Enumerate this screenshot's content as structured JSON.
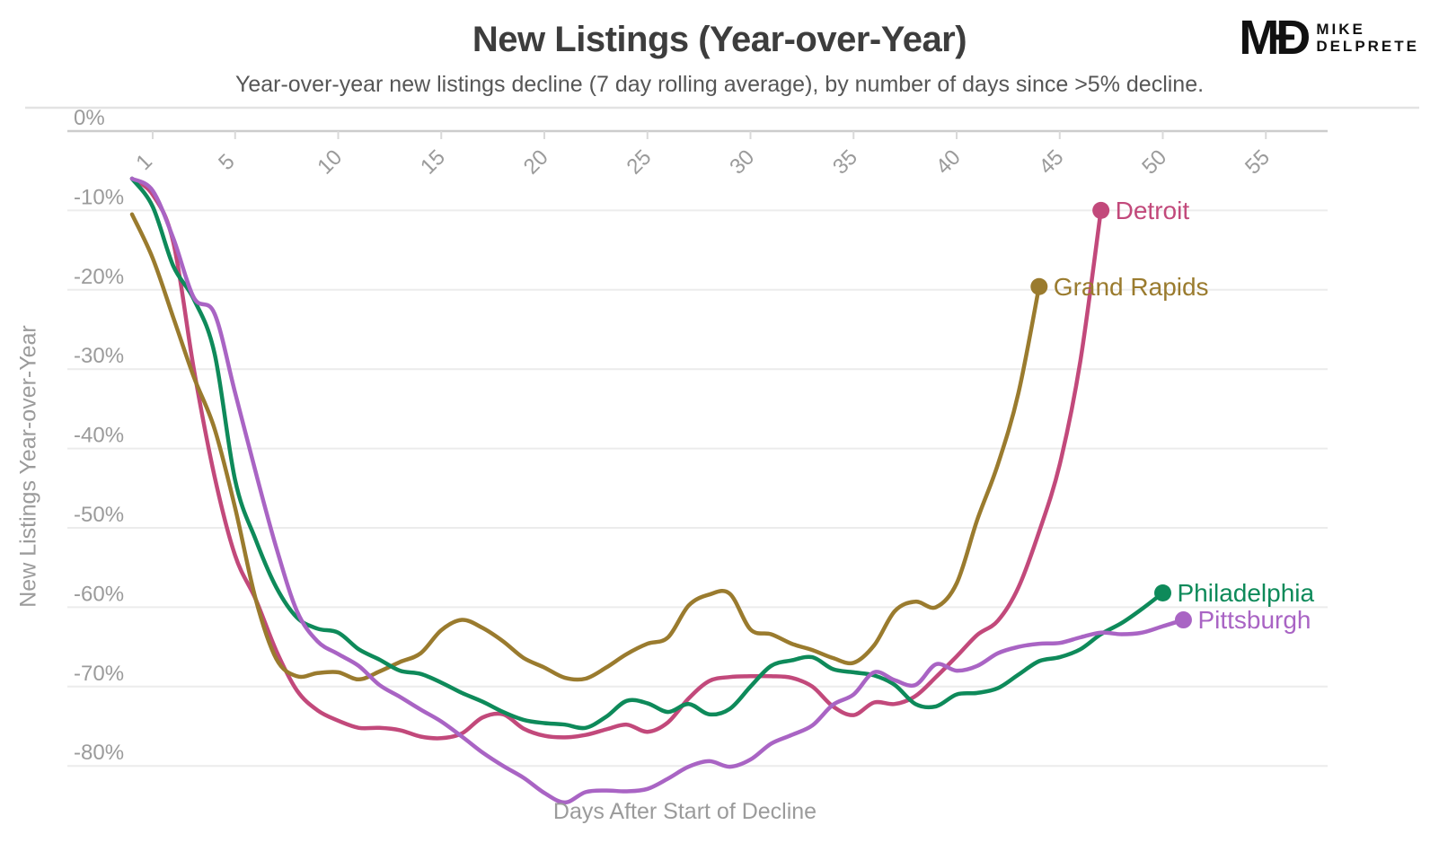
{
  "header": {
    "title": "New Listings (Year-over-Year)",
    "subtitle": "Year-over-year new listings decline (7 day rolling average), by number of days since >5% decline.",
    "logo_mark": "MÐ",
    "logo_line1": "MIKE",
    "logo_line2": "DELPRETE"
  },
  "chart_data": {
    "type": "line",
    "title": "New Listings (Year-over-Year)",
    "xlabel": "Days After Start of Decline",
    "ylabel": "New Listings Year-over-Year",
    "x_start_day": 0,
    "x_ticks": [
      1,
      5,
      10,
      15,
      20,
      25,
      30,
      35,
      40,
      45,
      50,
      55
    ],
    "y_ticks": [
      0,
      -10,
      -20,
      -30,
      -40,
      -50,
      -60,
      -70,
      -80
    ],
    "y_tick_labels": [
      "0%",
      "-10%",
      "-20%",
      "-30%",
      "-40%",
      "-50%",
      "-60%",
      "-70%",
      "-80%"
    ],
    "xlim": [
      0,
      58
    ],
    "ylim": [
      -87,
      0
    ],
    "grid": true,
    "legend_position": "end-of-line-labels",
    "colors": {
      "detroit": "#C2497B",
      "grand_rapids": "#9A7B2E",
      "philadelphia": "#0E8A5A",
      "pittsburgh": "#A964C4",
      "grid": "#ececec",
      "axis": "#cccccc",
      "tick_text": "#9b9b9b",
      "title_text": "#3d3d3d"
    },
    "series": [
      {
        "name": "Detroit",
        "color": "#C2497B",
        "end_label": "Detroit",
        "values": [
          -6,
          -8,
          -14,
          -30,
          -43.5,
          -53.5,
          -59,
          -65.5,
          -70.5,
          -73,
          -74.3,
          -75.2,
          -75.2,
          -75.5,
          -76.3,
          -76.5,
          -75.9,
          -73.9,
          -73.5,
          -75.3,
          -76.2,
          -76.4,
          -76.1,
          -75.4,
          -74.8,
          -75.7,
          -74.5,
          -71.5,
          -69.3,
          -68.8,
          -68.7,
          -68.7,
          -68.9,
          -70,
          -72.5,
          -73.6,
          -72,
          -72.2,
          -71.2,
          -68.8,
          -66.2,
          -63.5,
          -61.7,
          -57.5,
          -50.5,
          -42,
          -29,
          -10
        ]
      },
      {
        "name": "Grand Rapids",
        "color": "#9A7B2E",
        "end_label": "Grand Rapids",
        "values": [
          -10.5,
          -16,
          -23.5,
          -31,
          -37.5,
          -47.5,
          -59,
          -66.5,
          -68.7,
          -68.3,
          -68.2,
          -69.1,
          -68.1,
          -66.9,
          -65.8,
          -62.9,
          -61.6,
          -62.6,
          -64.3,
          -66.4,
          -67.6,
          -68.9,
          -69,
          -67.6,
          -65.9,
          -64.6,
          -63.8,
          -59.8,
          -58.4,
          -58.3,
          -62.8,
          -63.4,
          -64.6,
          -65.4,
          -66.4,
          -67,
          -64.8,
          -60.5,
          -59.3,
          -60,
          -57,
          -49,
          -42,
          -33,
          -19.6
        ]
      },
      {
        "name": "Philadelphia",
        "color": "#0E8A5A",
        "end_label": "Philadelphia",
        "values": [
          -6,
          -9.5,
          -17,
          -21.2,
          -28,
          -44,
          -51.5,
          -57.5,
          -61.3,
          -62.7,
          -63.2,
          -65.3,
          -66.6,
          -68,
          -68.4,
          -69.5,
          -70.8,
          -71.9,
          -73.2,
          -74.2,
          -74.6,
          -74.8,
          -75.2,
          -73.8,
          -71.8,
          -72.1,
          -73.2,
          -72.2,
          -73.5,
          -72.8,
          -70,
          -67.4,
          -66.7,
          -66.3,
          -67.8,
          -68.2,
          -68.6,
          -69.8,
          -72.2,
          -72.5,
          -71,
          -70.8,
          -70.2,
          -68.5,
          -66.8,
          -66.3,
          -65.3,
          -63.4,
          -62,
          -60.2,
          -58.2
        ]
      },
      {
        "name": "Pittsburgh",
        "color": "#A964C4",
        "end_label": "Pittsburgh",
        "values": [
          -6,
          -7.5,
          -13.5,
          -21,
          -23,
          -33,
          -43,
          -52.5,
          -60.5,
          -64.3,
          -65.9,
          -67.4,
          -69.8,
          -71.3,
          -72.9,
          -74.4,
          -76.3,
          -78.3,
          -80,
          -81.5,
          -83.4,
          -84.6,
          -83.3,
          -83.1,
          -83.2,
          -82.9,
          -81.6,
          -80.1,
          -79.4,
          -80.1,
          -79.2,
          -77.2,
          -76.1,
          -74.9,
          -72.3,
          -71,
          -68.2,
          -69.2,
          -69.8,
          -67.2,
          -68,
          -67.4,
          -65.8,
          -65,
          -64.6,
          -64.5,
          -63.8,
          -63.2,
          -63.4,
          -63.2,
          -62.4,
          -61.6
        ]
      }
    ]
  }
}
